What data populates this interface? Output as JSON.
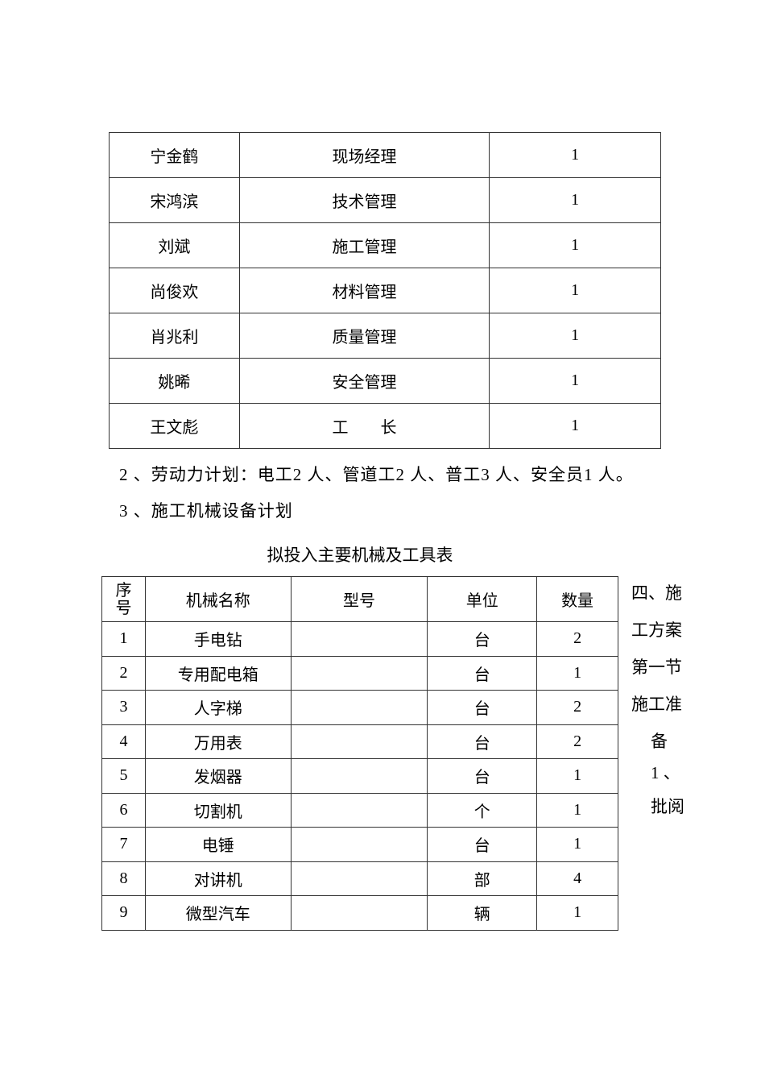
{
  "staff_table": {
    "rows": [
      [
        "宁金鹤",
        "现场经理",
        "1"
      ],
      [
        "宋鸿滨",
        "技术管理",
        "1"
      ],
      [
        "刘斌",
        "施工管理",
        "1"
      ],
      [
        "尚俊欢",
        "材料管理",
        "1"
      ],
      [
        "肖兆利",
        "质量管理",
        "1"
      ],
      [
        "姚晞",
        "安全管理",
        "1"
      ],
      [
        "王文彪",
        "工　　长",
        "1"
      ]
    ]
  },
  "paragraphs": {
    "labor_plan": "2 、劳动力计划：电工2 人、管道工2 人、普工3 人、安全员1 人。",
    "equipment_plan": "3 、施工机械设备计划"
  },
  "equipment_table": {
    "title": "拟投入主要机械及工具表",
    "headers": [
      "序号",
      "机械名称",
      "型号",
      "单位",
      "数量"
    ],
    "rows": [
      [
        "1",
        "手电钻",
        "",
        "台",
        "2"
      ],
      [
        "2",
        "专用配电箱",
        "",
        "台",
        "1"
      ],
      [
        "3",
        "人字梯",
        "",
        "台",
        "2"
      ],
      [
        "4",
        "万用表",
        "",
        "台",
        "2"
      ],
      [
        "5",
        "发烟器",
        "",
        "台",
        "1"
      ],
      [
        "6",
        "切割机",
        "",
        "个",
        "1"
      ],
      [
        "7",
        "电锤",
        "",
        "台",
        "1"
      ],
      [
        "8",
        "对讲机",
        "",
        "部",
        "4"
      ],
      [
        "9",
        "微型汽车",
        "",
        "辆",
        "1"
      ]
    ]
  },
  "side_text": [
    "四、施",
    "工方案",
    "第一节",
    "施工准",
    "备",
    "1 、",
    "批阅"
  ]
}
